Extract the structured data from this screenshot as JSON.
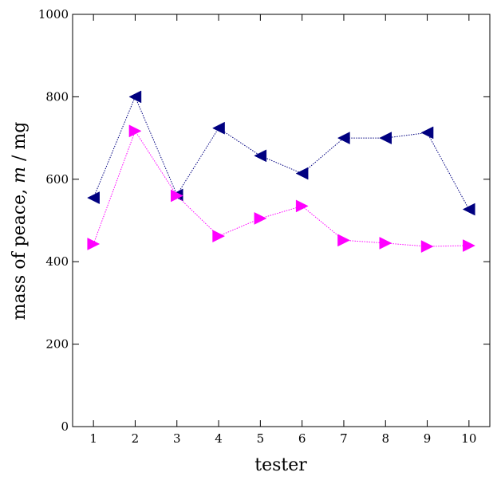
{
  "chart_data": {
    "type": "line",
    "title": "",
    "xlabel": "tester",
    "ylabel_prefix": "mass of peace, ",
    "ylabel_var": "m",
    "ylabel_suffix": " / mg",
    "x": [
      1,
      2,
      3,
      4,
      5,
      6,
      7,
      8,
      9,
      10
    ],
    "xlim": [
      0.5,
      10.5
    ],
    "ylim": [
      0,
      1000
    ],
    "yticks": [
      0,
      200,
      400,
      600,
      800,
      1000
    ],
    "grid": false,
    "legend": "none",
    "series": [
      {
        "marker": "triangle-left",
        "color": "#000080",
        "line_style": "dotted",
        "values": [
          555,
          800,
          562,
          724,
          657,
          614,
          700,
          700,
          713,
          527
        ]
      },
      {
        "marker": "triangle-right",
        "color": "#ff00ff",
        "line_style": "dotted",
        "values": [
          443,
          717,
          560,
          462,
          505,
          535,
          452,
          445,
          437,
          439
        ]
      }
    ]
  }
}
